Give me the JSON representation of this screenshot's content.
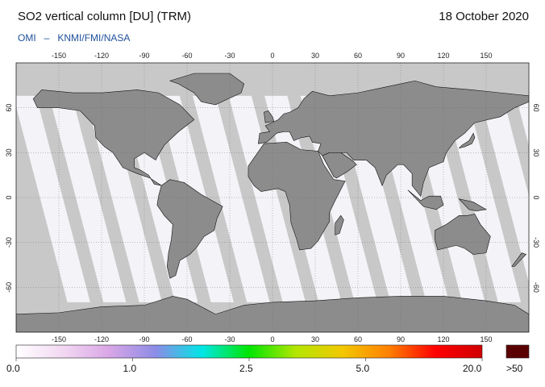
{
  "header": {
    "title": "SO2 vertical column [DU] (TRM)",
    "date": "18 October 2020",
    "credit_primary": "OMI",
    "credit_separator": "–",
    "credit_secondary": "KNMI/FMI/NASA"
  },
  "map": {
    "lon_ticks": [
      "-150",
      "-120",
      "-90",
      "-60",
      "-30",
      "0",
      "30",
      "60",
      "90",
      "120",
      "150"
    ],
    "lat_ticks": [
      "60",
      "30",
      "0",
      "-30",
      "-60"
    ],
    "lon_range": [
      -180,
      180
    ],
    "lat_range": [
      -90,
      90
    ],
    "land_color": "#8c8c8c",
    "coverage_gap_color": "#c8c8c8",
    "swath_color": "#f4f4f8"
  },
  "colorbar": {
    "labels": [
      "0.0",
      "1.0",
      "2.5",
      "5.0",
      "20.0"
    ],
    "over_label": ">50",
    "over_color": "#5a0000",
    "gradient": [
      "#ffffff",
      "#f2d8f2",
      "#d9a6e6",
      "#8c8ce6",
      "#00e6e6",
      "#00e600",
      "#b3e600",
      "#f2c800",
      "#ff8000",
      "#ff0000",
      "#d00000"
    ]
  }
}
